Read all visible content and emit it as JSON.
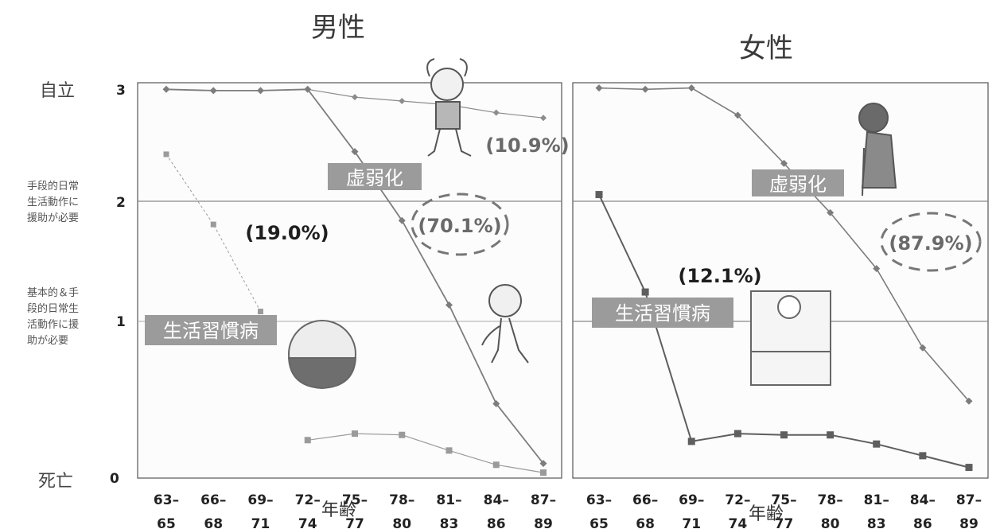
{
  "y_category_labels": {
    "top": "自立",
    "mid": [
      "手段的日常",
      "生活動作に",
      "援助が必要"
    ],
    "low": [
      "基本的＆手",
      "段的日常生",
      "活動作に援",
      "助が必要"
    ],
    "bottom": "死亡"
  },
  "colors": {
    "frail": "#7d7d7d",
    "lifestyle": "#9a9a9a",
    "independent": "#8c8c8c",
    "box_bg": "#9b9b9b",
    "ellipse": "#777777"
  },
  "chart_data": [
    {
      "type": "line",
      "title": "男性",
      "xlabel": "年齢",
      "ylabel": "",
      "ylim": [
        0,
        3
      ],
      "yticks": [
        "0",
        "1",
        "2",
        "3"
      ],
      "categories": [
        "63–65",
        "66–68",
        "69–71",
        "72–74",
        "75–77",
        "78–80",
        "81–83",
        "84–86",
        "87–89"
      ],
      "categories_top": [
        "63–",
        "66–",
        "69–",
        "72–",
        "75–",
        "78–",
        "81–",
        "84–",
        "87–"
      ],
      "categories_bottom": [
        "65",
        "68",
        "71",
        "74",
        "77",
        "80",
        "83",
        "86",
        "89"
      ],
      "grid": "horizontal at 1 and 2",
      "series": [
        {
          "values": [
            2.98,
            2.97,
            2.97,
            2.98,
            2.92,
            2.89,
            2.86,
            2.8,
            2.76
          ]
        },
        {
          "values": [
            2.98,
            2.97,
            2.97,
            2.98,
            2.5,
            1.97,
            1.32,
            0.56,
            0.1
          ]
        },
        {
          "values": [
            2.48,
            1.94,
            1.27,
            null,
            null,
            null,
            null,
            null,
            null
          ]
        },
        {
          "values": [
            null,
            null,
            null,
            0.28,
            0.33,
            0.32,
            0.2,
            0.09,
            0.03
          ]
        }
      ],
      "annotations": {
        "independent_pct": "(10.9%)",
        "frail_label": "虚弱化",
        "frail_pct": "(70.1%)",
        "lifestyle_label": "生活習慣病",
        "lifestyle_pct": "(19.0%)"
      }
    },
    {
      "type": "line",
      "title": "女性",
      "xlabel": "年齢",
      "ylabel": "",
      "ylim": [
        0,
        3
      ],
      "categories": [
        "63–65",
        "66–68",
        "69–71",
        "72–74",
        "75–77",
        "78–80",
        "81–83",
        "84–86",
        "87–89"
      ],
      "categories_top": [
        "63–",
        "66–",
        "69–",
        "72–",
        "75–",
        "78–",
        "81–",
        "84–",
        "87–"
      ],
      "categories_bottom": [
        "65",
        "68",
        "71",
        "74",
        "77",
        "80",
        "83",
        "86",
        "89"
      ],
      "grid": "horizontal at 1 and 2",
      "series": [
        {
          "values": [
            2.99,
            2.98,
            2.99,
            2.78,
            2.41,
            2.03,
            1.6,
            0.99,
            0.58
          ]
        },
        {
          "values": [
            2.17,
            1.42,
            0.27,
            0.33,
            0.32,
            0.32,
            0.25,
            0.16,
            0.07
          ]
        }
      ],
      "annotations": {
        "frail_label": "虚弱化",
        "frail_pct": "(87.9%)",
        "lifestyle_label": "生活習慣病",
        "lifestyle_pct": "(12.1%)"
      }
    }
  ]
}
